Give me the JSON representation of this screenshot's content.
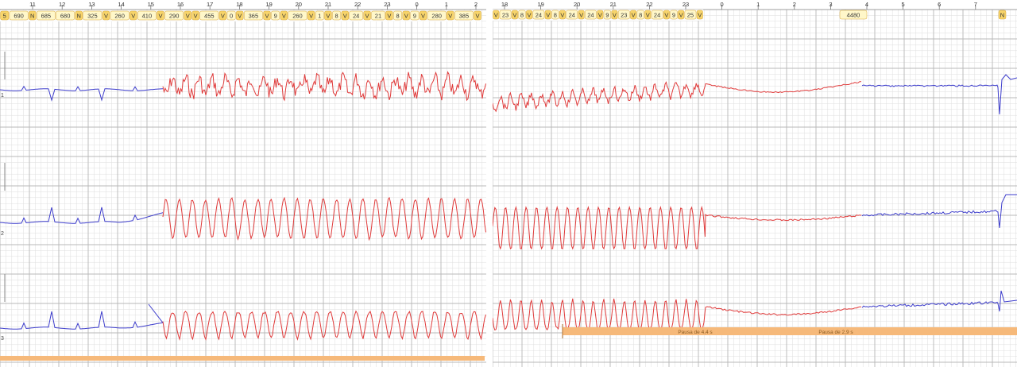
{
  "left_panel": {
    "time_ticks": [
      "11",
      "12",
      "13",
      "14",
      "15",
      "16",
      "17",
      "18",
      "19",
      "20",
      "21",
      "22",
      "23",
      "0",
      "1",
      "2"
    ],
    "annotations": [
      {
        "label": "5",
        "color": "#f7d46a"
      },
      {
        "label": "690",
        "color": "#fff7c9"
      },
      {
        "label": "N",
        "color": "#f7d46a"
      },
      {
        "label": "685",
        "color": "#fff7c9"
      },
      {
        "label": "680",
        "color": "#fff7c9"
      },
      {
        "label": "N",
        "color": "#f7d46a"
      },
      {
        "label": "325",
        "color": "#fff7c9"
      },
      {
        "label": "V",
        "color": "#f7d46a"
      },
      {
        "label": "260",
        "color": "#fff7c9"
      },
      {
        "label": "V",
        "color": "#f7d46a"
      },
      {
        "label": "410",
        "color": "#fff7c9"
      },
      {
        "label": "V",
        "color": "#f7d46a"
      },
      {
        "label": "290",
        "color": "#fff7c9"
      },
      {
        "label": "V",
        "color": "#f7d46a"
      },
      {
        "label": "V",
        "color": "#f7d46a"
      },
      {
        "label": "455",
        "color": "#fff7c9"
      },
      {
        "label": "V",
        "color": "#f7d46a"
      },
      {
        "label": "0",
        "color": "#fff7c9"
      },
      {
        "label": "V",
        "color": "#f7d46a"
      },
      {
        "label": "365",
        "color": "#fff7c9"
      },
      {
        "label": "V",
        "color": "#f7d46a"
      },
      {
        "label": "9",
        "color": "#fff7c9"
      },
      {
        "label": "V",
        "color": "#f7d46a"
      },
      {
        "label": "260",
        "color": "#fff7c9"
      },
      {
        "label": "V",
        "color": "#f7d46a"
      },
      {
        "label": "1",
        "color": "#fff7c9"
      },
      {
        "label": "V",
        "color": "#f7d46a"
      },
      {
        "label": "8",
        "color": "#fff7c9"
      },
      {
        "label": "V",
        "color": "#f7d46a"
      },
      {
        "label": "24",
        "color": "#fff7c9"
      },
      {
        "label": "V",
        "color": "#f7d46a"
      },
      {
        "label": "21",
        "color": "#fff7c9"
      },
      {
        "label": "V",
        "color": "#f7d46a"
      },
      {
        "label": "8",
        "color": "#fff7c9"
      },
      {
        "label": "V",
        "color": "#f7d46a"
      },
      {
        "label": "9",
        "color": "#fff7c9"
      },
      {
        "label": "V",
        "color": "#f7d46a"
      },
      {
        "label": "280",
        "color": "#fff7c9"
      },
      {
        "label": "V",
        "color": "#f7d46a"
      },
      {
        "label": "385",
        "color": "#fff7c9"
      },
      {
        "label": "V",
        "color": "#f7d46a"
      }
    ],
    "channel_labels": [
      "1",
      "2",
      "3"
    ],
    "traces": [
      {
        "channel": "1",
        "normal_color": "#3d3dcc",
        "vt_color": "#e03a3a"
      },
      {
        "channel": "2",
        "normal_color": "#3d3dcc",
        "vt_color": "#e03a3a"
      },
      {
        "channel": "3",
        "normal_color": "#3d3dcc",
        "vt_color": "#e03a3a"
      }
    ]
  },
  "right_panel": {
    "time_ticks": [
      "18",
      "19",
      "20",
      "21",
      "22",
      "23",
      "0",
      "1",
      "2",
      "3",
      "4",
      "5",
      "6",
      "7"
    ],
    "annotations_left": [
      "V",
      "23",
      "V",
      "8",
      "V",
      "24",
      "V",
      "8",
      "V",
      "24",
      "V",
      "24",
      "V",
      "9",
      "V",
      "23",
      "V",
      "8",
      "V",
      "24",
      "V",
      "9",
      "V",
      "25",
      "V"
    ],
    "rr_value": "4480",
    "end_marker": "N",
    "pause_labels": [
      "Pausa de 4,4 s",
      "Pausa de 2,9 s"
    ],
    "traces": [
      {
        "channel": "1",
        "normal_color": "#3d3dcc",
        "vt_color": "#e03a3a"
      },
      {
        "channel": "2",
        "normal_color": "#3d3dcc",
        "vt_color": "#e03a3a"
      },
      {
        "channel": "3",
        "normal_color": "#3d3dcc",
        "vt_color": "#e03a3a"
      }
    ]
  },
  "colors": {
    "grid_major": "#b8b8b8",
    "grid_minor": "#dedede",
    "annotation_v": "#f7d46a",
    "annotation_value": "#fff7c9",
    "pause_bar": "#f6b97a",
    "ruler_bg": "#ffffff"
  }
}
